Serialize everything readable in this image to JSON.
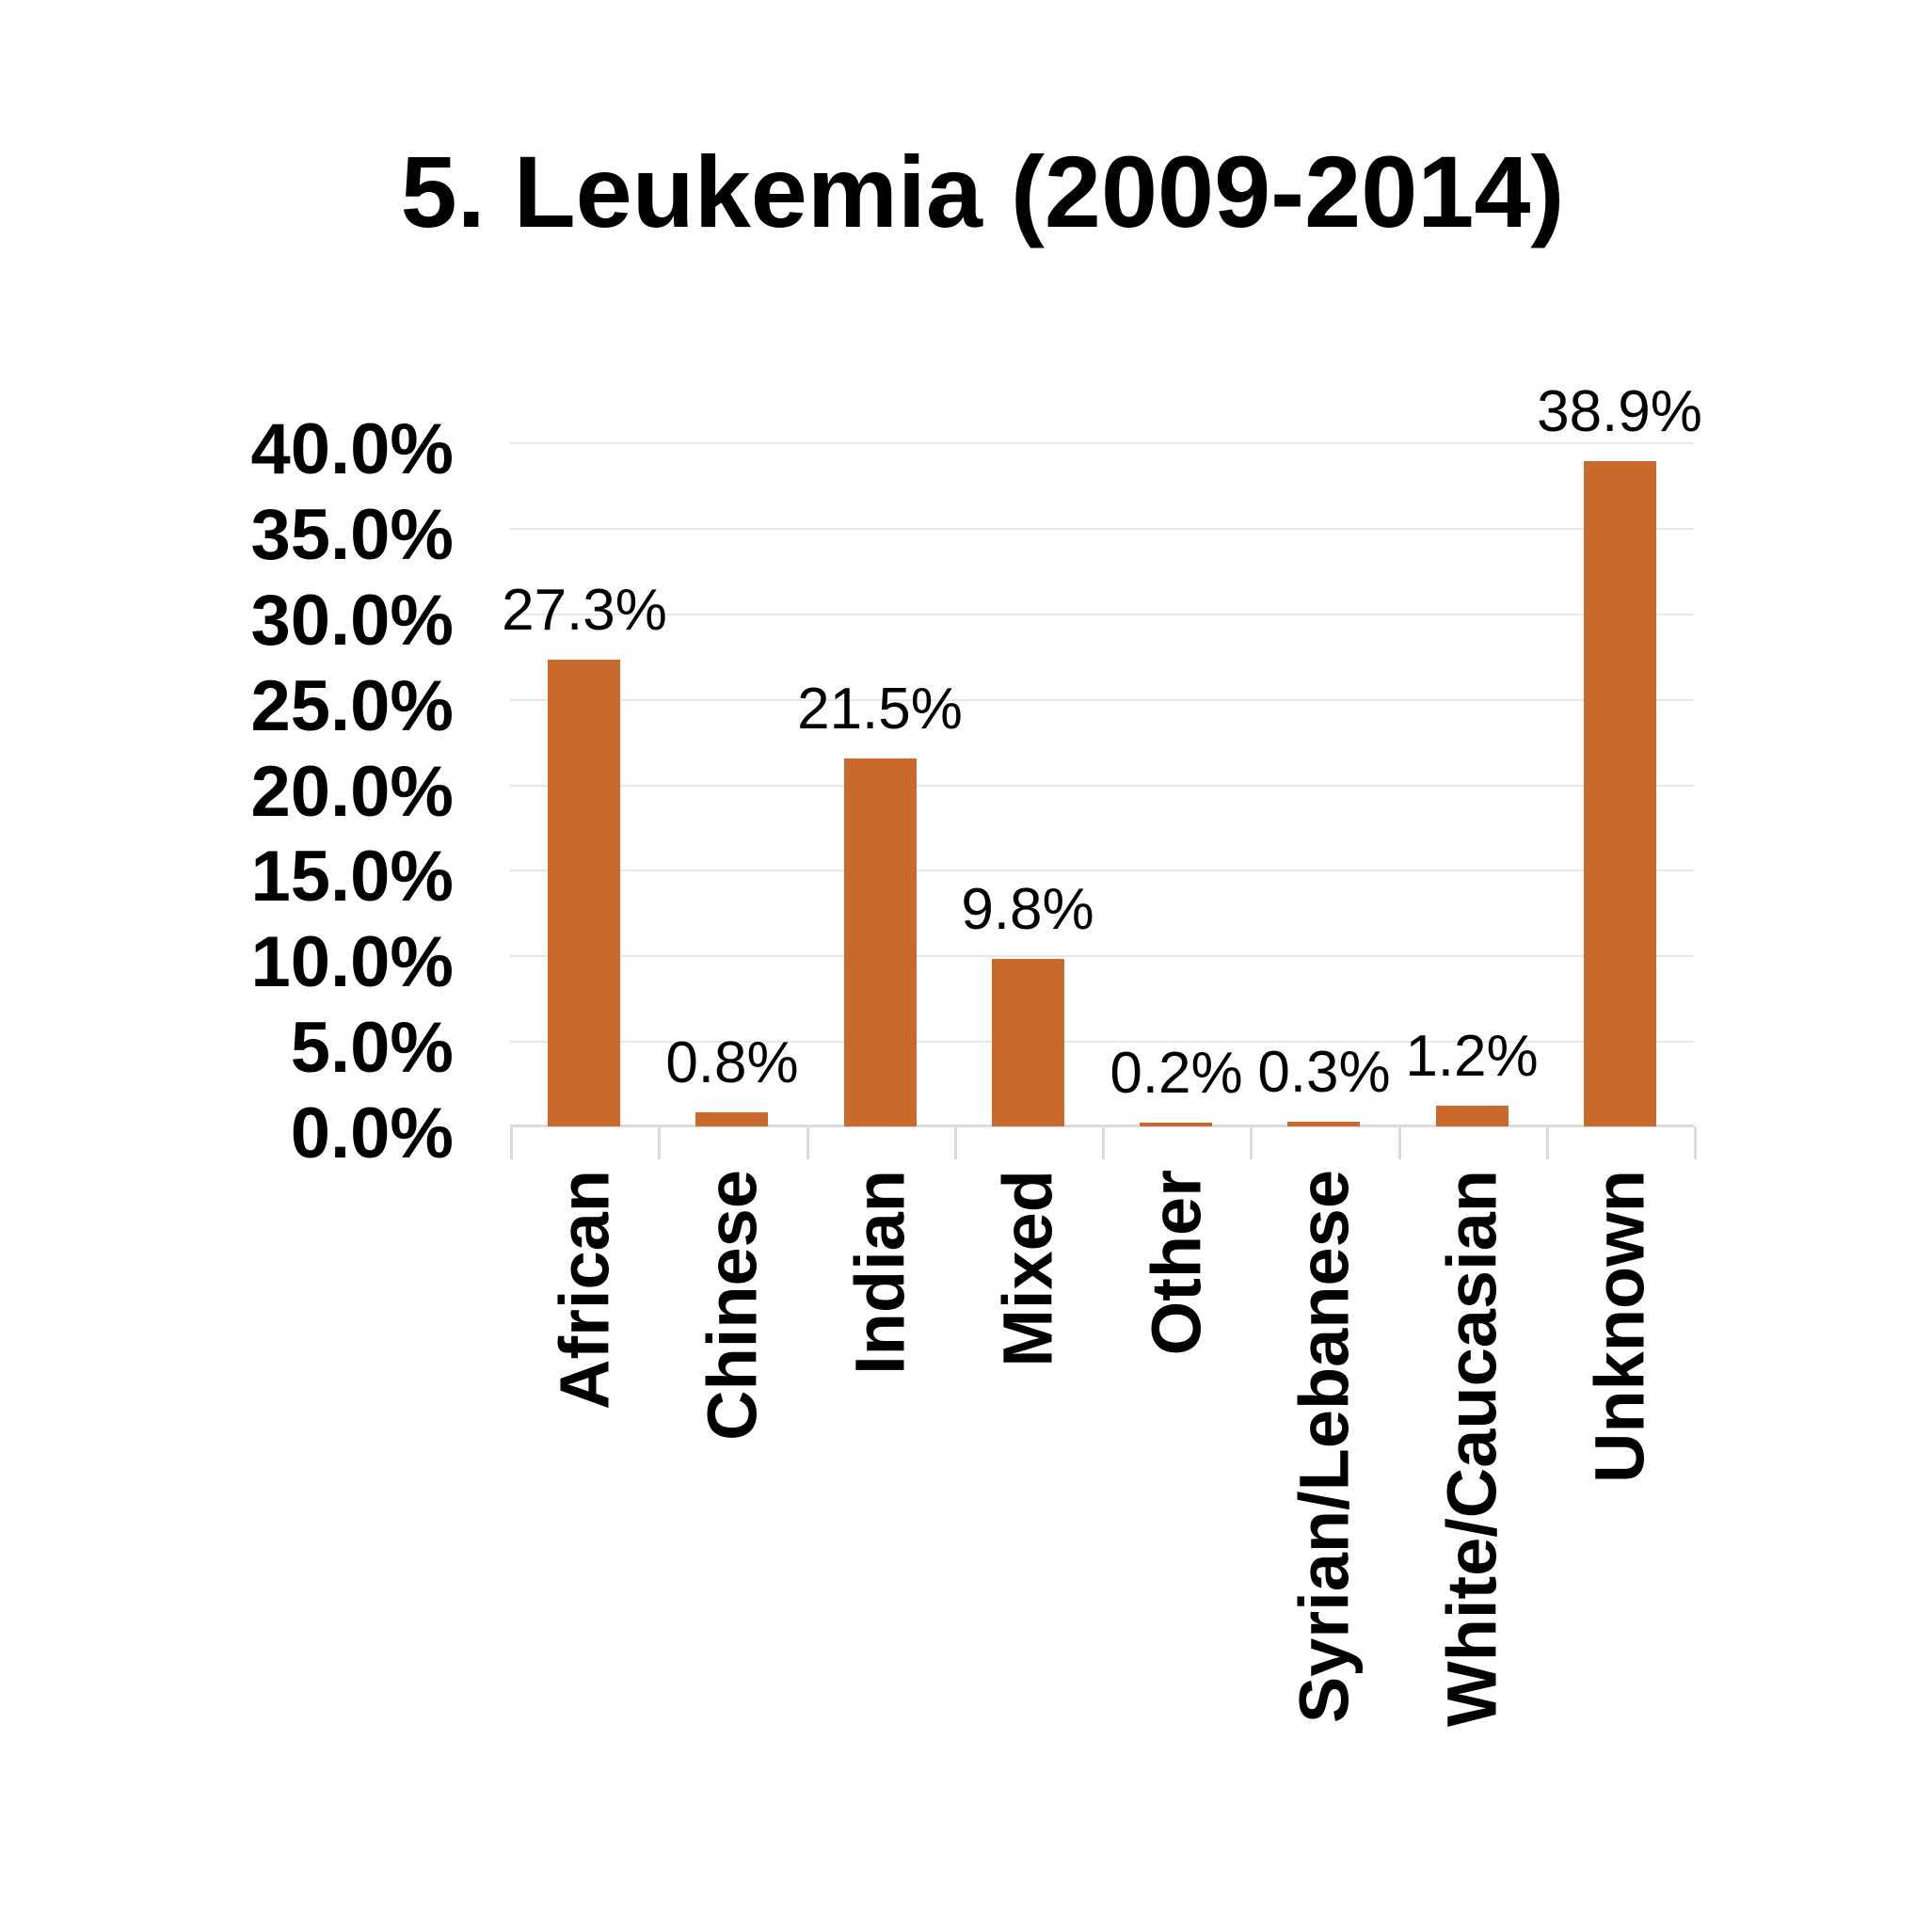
{
  "title": "5. Leukemia (2009-2014)",
  "chart_data": {
    "type": "bar",
    "title": "5. Leukemia (2009-2014)",
    "categories": [
      "African",
      "Chinese",
      "Indian",
      "Mixed",
      "Other",
      "Syrian/Lebanese",
      "White/Caucasian",
      "Unknown"
    ],
    "values": [
      27.3,
      0.8,
      21.5,
      9.8,
      0.2,
      0.3,
      1.2,
      38.9
    ],
    "value_labels": [
      "27.3%",
      "0.8%",
      "21.5%",
      "9.8%",
      "0.2%",
      "0.3%",
      "1.2%",
      "38.9%"
    ],
    "xlabel": "",
    "ylabel": "",
    "y_axis": {
      "range": [
        0,
        40
      ],
      "ticks": [
        {
          "v": 40,
          "label": "40.0%"
        },
        {
          "v": 35,
          "label": "35.0%"
        },
        {
          "v": 30,
          "label": "30.0%"
        },
        {
          "v": 25,
          "label": "25.0%"
        },
        {
          "v": 20,
          "label": "20.0%"
        },
        {
          "v": 15,
          "label": "15.0%"
        },
        {
          "v": 10,
          "label": "10.0%"
        },
        {
          "v": 5,
          "label": "5.0%"
        },
        {
          "v": 0,
          "label": "0.0%"
        }
      ]
    },
    "grid": "horizontal",
    "legend": "none",
    "bar_color": "#C96A2C",
    "gridline_color": "#E8E8E8",
    "axis_color": "#DBDBDB",
    "text_color": "#000000",
    "background": "#FFFFFF"
  }
}
